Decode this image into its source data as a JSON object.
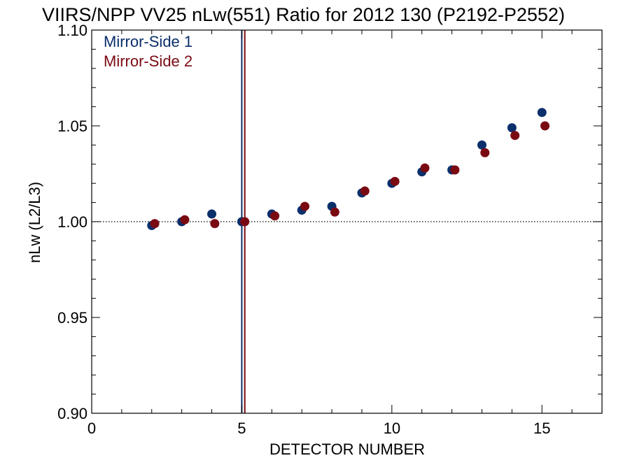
{
  "chart_data": {
    "type": "scatter",
    "title": "VIIRS/NPP VV25 nLw(551) Ratio for 2012 130 (P2192-P2552)",
    "xlabel": "DETECTOR NUMBER",
    "ylabel": "nLw (L2/L3)",
    "xlim": [
      0,
      17
    ],
    "ylim": [
      0.9,
      1.1
    ],
    "x_ticks": [
      0,
      5,
      10,
      15
    ],
    "x_tick_labels": [
      "0",
      "5",
      "10",
      "15"
    ],
    "y_ticks": [
      0.9,
      0.95,
      1.0,
      1.05,
      1.1
    ],
    "y_tick_labels": [
      "0.90",
      "0.95",
      "1.00",
      "1.05",
      "1.10"
    ],
    "reference_line_y": 1.0,
    "legend_position": "top-left",
    "series": [
      {
        "name": "Mirror-Side 1",
        "color": "#0b2f6b",
        "x": [
          2,
          3,
          4,
          5,
          6,
          7,
          8,
          9,
          10,
          11,
          12,
          13,
          14,
          15
        ],
        "y": [
          0.998,
          1.0,
          1.004,
          1.0,
          1.004,
          1.006,
          1.008,
          1.015,
          1.02,
          1.026,
          1.027,
          1.04,
          1.049,
          1.057
        ],
        "vline_x": 5.0
      },
      {
        "name": "Mirror-Side 2",
        "color": "#7a0a12",
        "x": [
          2.1,
          3.1,
          4.1,
          5.1,
          6.1,
          7.1,
          8.1,
          9.1,
          10.1,
          11.1,
          12.1,
          13.1,
          14.1,
          15.1
        ],
        "y": [
          0.999,
          1.001,
          0.999,
          1.0,
          1.003,
          1.008,
          1.005,
          1.016,
          1.021,
          1.028,
          1.027,
          1.036,
          1.045,
          1.05
        ],
        "vline_x": 5.1
      }
    ]
  }
}
